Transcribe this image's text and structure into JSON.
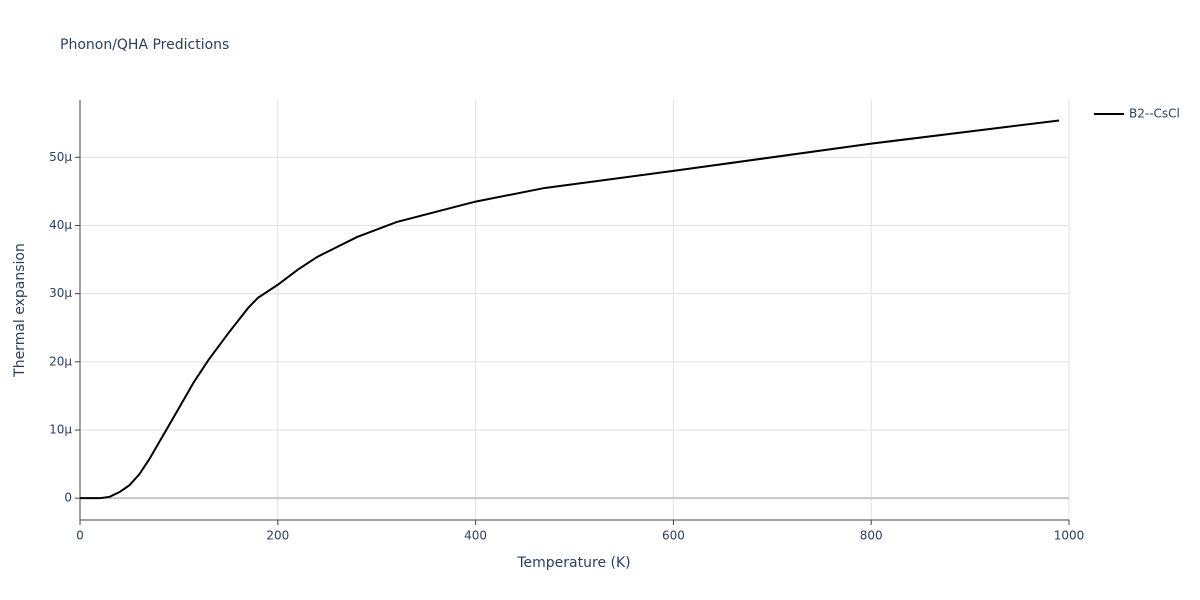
{
  "chart_data": {
    "type": "line",
    "title": "Phonon/QHA Predictions",
    "xlabel": "Temperature (K)",
    "ylabel": "Thermal expansion",
    "x": [
      0,
      10,
      20,
      30,
      40,
      50,
      60,
      70,
      80,
      90,
      100,
      115,
      130,
      150,
      170,
      180,
      200,
      220,
      240,
      280,
      320,
      360,
      400,
      470,
      600,
      800,
      990
    ],
    "series": [
      {
        "name": "B2--CsCl",
        "color": "#000000",
        "values": [
          0,
          0,
          0,
          2e-07,
          9e-07,
          1.9e-06,
          3.5e-06,
          5.7e-06,
          8.2e-06,
          1.07e-05,
          1.32e-05,
          1.7e-05,
          2.03e-05,
          2.42e-05,
          2.79e-05,
          2.94e-05,
          3.13e-05,
          3.35e-05,
          3.54e-05,
          3.83e-05,
          4.05e-05,
          4.2e-05,
          4.35e-05,
          4.55e-05,
          4.8e-05,
          5.2e-05,
          5.54e-05
        ]
      }
    ],
    "xlim": [
      0,
      1000
    ],
    "xticks": [
      0,
      200,
      400,
      600,
      800,
      1000
    ],
    "ylim": [
      -3.2e-06,
      5.84e-05
    ],
    "yticks": [
      0,
      {
        "value": 1e-05,
        "label": "10μ"
      },
      {
        "value": 2e-05,
        "label": "20μ"
      },
      {
        "value": 3e-05,
        "label": "30μ"
      },
      {
        "value": 4e-05,
        "label": "40μ"
      },
      {
        "value": 5e-05,
        "label": "50μ"
      }
    ],
    "grid": true,
    "legend": "top-right"
  }
}
